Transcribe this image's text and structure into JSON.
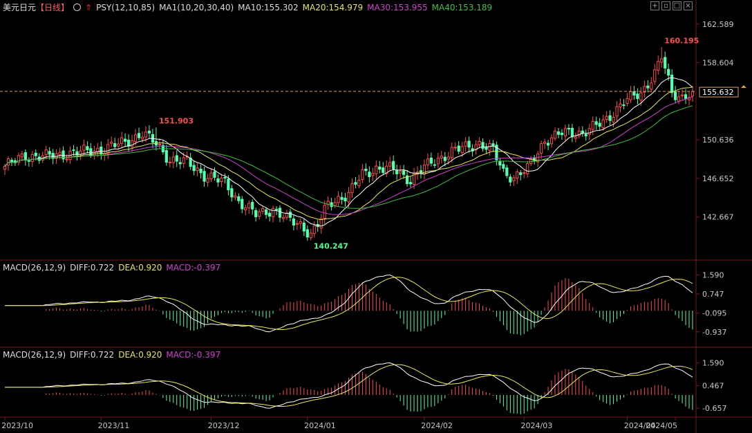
{
  "header": {
    "symbol": "美元日元",
    "period": "【日线】",
    "indicators": [
      {
        "label": "PSY(12,10,85)",
        "color": "#ffffff"
      },
      {
        "label": "MA1(10,20,30,40)",
        "color": "#ffffff"
      },
      {
        "label": "MA10:155.302",
        "color": "#ffffff"
      },
      {
        "label": "MA20:154.979",
        "color": "#e8e85a"
      },
      {
        "label": "MA30:153.955",
        "color": "#d040d0"
      },
      {
        "label": "MA40:153.189",
        "color": "#40c040"
      }
    ]
  },
  "macd_panels": [
    {
      "title": "MACD(26,12,9)",
      "diff": "DIFF:0.722",
      "dea": "DEA:0.920",
      "macd": "MACD:-0.397",
      "ticks": [
        "1.590",
        "0.747",
        "-0.095",
        "-0.937"
      ]
    },
    {
      "title": "MACD(26,12,9)",
      "diff": "DIFF:0.722",
      "dea": "DEA:0.920",
      "macd": "MACD:-0.397",
      "ticks": [
        "1.590",
        "0.467",
        "-0.657"
      ]
    }
  ],
  "colors": {
    "up": "#ff4d4d",
    "down": "#54ffb0",
    "ma10": "#ffffff",
    "ma20": "#e8e85a",
    "ma30": "#d040d0",
    "ma40": "#40c040",
    "grid": "#7a1a1a",
    "axis_text": "#c8c8c8"
  },
  "chart_data": {
    "type": "candlestick",
    "price_ticks": [
      "162.589",
      "158.604",
      "155.632",
      "150.636",
      "146.652",
      "142.667"
    ],
    "current_price": "155.632",
    "ylim": [
      138.5,
      163.5
    ],
    "annotations": [
      {
        "text": "151.903",
        "value": 151.903
      },
      {
        "text": "140.247",
        "value": 140.247
      },
      {
        "text": "160.195",
        "value": 160.195
      }
    ],
    "x_labels": [
      "2023/10",
      "2023/11",
      "2023/12",
      "2024/01",
      "2024/02",
      "2024/03",
      "2024/04",
      "2024/05"
    ],
    "close_anchors": [
      [
        0,
        147.9
      ],
      [
        6,
        149.0
      ],
      [
        12,
        148.9
      ],
      [
        20,
        149.3
      ],
      [
        28,
        149.6
      ],
      [
        35,
        150.4
      ],
      [
        40,
        151.3
      ],
      [
        44,
        150.2
      ],
      [
        48,
        148.6
      ],
      [
        53,
        148.3
      ],
      [
        58,
        147.0
      ],
      [
        64,
        146.2
      ],
      [
        68,
        144.3
      ],
      [
        73,
        142.9
      ],
      [
        78,
        143.5
      ],
      [
        82,
        142.4
      ],
      [
        86,
        141.9
      ],
      [
        89,
        140.9
      ],
      [
        91,
        141.8
      ],
      [
        94,
        144.0
      ],
      [
        97,
        144.6
      ],
      [
        100,
        145.0
      ],
      [
        104,
        147.1
      ],
      [
        108,
        147.7
      ],
      [
        113,
        147.6
      ],
      [
        118,
        146.5
      ],
      [
        121,
        147.5
      ],
      [
        125,
        148.5
      ],
      [
        130,
        149.4
      ],
      [
        135,
        150.0
      ],
      [
        138,
        150.3
      ],
      [
        142,
        149.5
      ],
      [
        145,
        147.3
      ],
      [
        148,
        146.8
      ],
      [
        152,
        147.6
      ],
      [
        157,
        150.6
      ],
      [
        162,
        151.3
      ],
      [
        168,
        151.4
      ],
      [
        174,
        152.4
      ],
      [
        180,
        154.6
      ],
      [
        185,
        155.4
      ],
      [
        189,
        157.6
      ],
      [
        191,
        159.2
      ],
      [
        194,
        155.4
      ],
      [
        197,
        155.1
      ],
      [
        200,
        155.63
      ]
    ],
    "annotations_idx": [
      44,
      89,
      191
    ]
  }
}
